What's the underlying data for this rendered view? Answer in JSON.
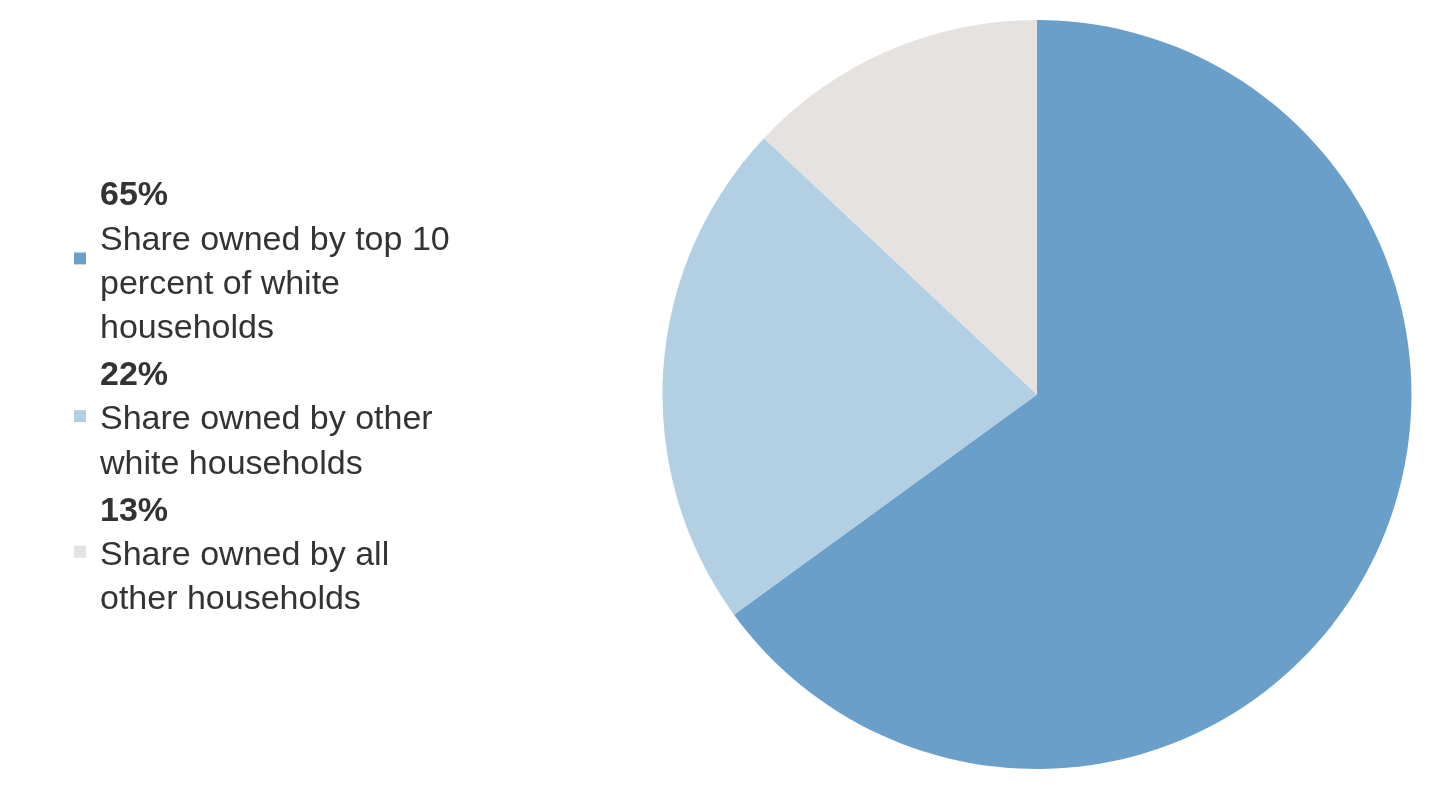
{
  "chart_data": {
    "type": "pie",
    "categories": [
      "Share owned by top 10 percent of white households",
      "Share owned by other white households",
      "Share owned by all other households"
    ],
    "values": [
      65,
      22,
      13
    ],
    "value_labels": [
      "65%",
      "22%",
      "13%"
    ],
    "colors": [
      "#6a9fca",
      "#b3cfe4",
      "#e5e2df"
    ],
    "legend": "left"
  }
}
